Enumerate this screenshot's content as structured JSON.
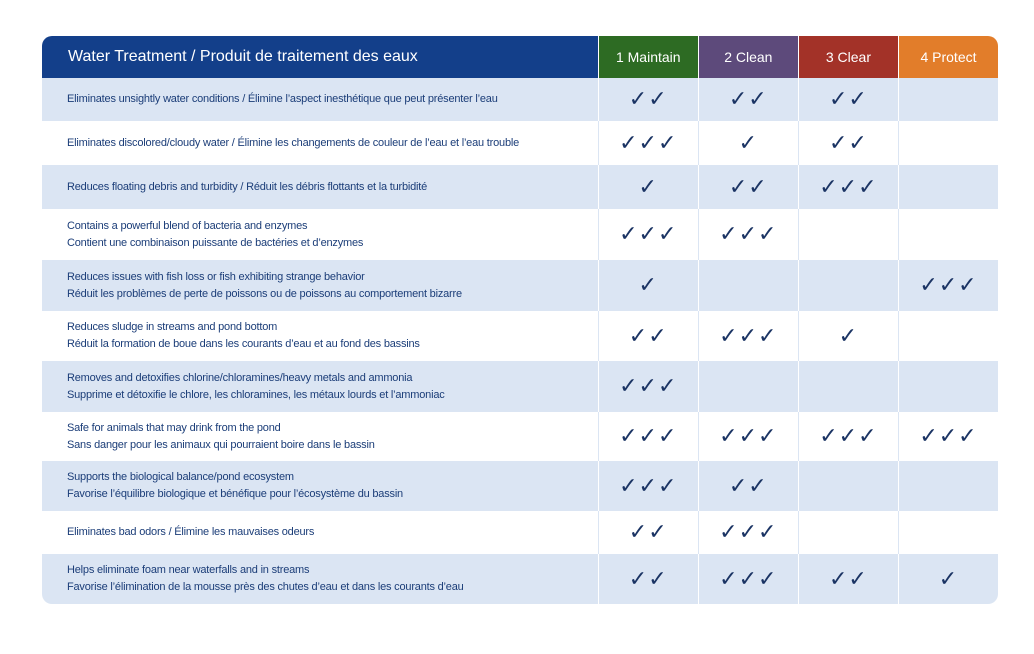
{
  "colors": {
    "title_bg": "#133f8a",
    "col1": "#2d6b23",
    "col2": "#5d4a7b",
    "col3": "#a33228",
    "col4": "#e27d2a",
    "row_shade": "#dbe5f3",
    "text": "#1b3d78"
  },
  "icon": "checkmark-icon",
  "header": {
    "title": "Water Treatment / Produit de traitement des eaux",
    "columns": [
      "1 Maintain",
      "2 Clean",
      "3 Clear",
      "4 Protect"
    ]
  },
  "rows": [
    {
      "lines": [
        "Eliminates unsightly water conditions / Élimine l’aspect inesthétique que peut présenter l’eau"
      ],
      "checks": [
        "✓✓",
        "✓✓",
        "✓✓",
        ""
      ]
    },
    {
      "lines": [
        "Eliminates discolored/cloudy water / Élimine les changements de couleur de l’eau et l’eau trouble"
      ],
      "checks": [
        "✓✓✓",
        "✓",
        "✓✓",
        ""
      ]
    },
    {
      "lines": [
        "Reduces floating debris and turbidity / Réduit les débris flottants et la turbidité"
      ],
      "checks": [
        "✓",
        "✓✓",
        "✓✓✓",
        ""
      ]
    },
    {
      "lines": [
        "Contains a powerful blend of bacteria and enzymes",
        "Contient une combinaison puissante de bactéries et d’enzymes"
      ],
      "checks": [
        "✓✓✓",
        "✓✓✓",
        "",
        ""
      ]
    },
    {
      "lines": [
        "Reduces issues with fish loss or fish exhibiting strange behavior",
        "Réduit les problèmes de perte de poissons ou de poissons au comportement bizarre"
      ],
      "checks": [
        "✓",
        "",
        "",
        "✓✓✓"
      ]
    },
    {
      "lines": [
        "Reduces sludge in streams and pond bottom",
        "Réduit la formation de boue dans les courants d’eau et au fond des bassins"
      ],
      "checks": [
        "✓✓",
        "✓✓✓",
        "✓",
        ""
      ]
    },
    {
      "lines": [
        "Removes and detoxifies chlorine/chloramines/heavy metals and ammonia",
        "Supprime et détoxifie le chlore, les chloramines, les métaux lourds et l’ammoniac"
      ],
      "checks": [
        "✓✓✓",
        "",
        "",
        ""
      ]
    },
    {
      "lines": [
        "Safe for animals that may drink from the pond",
        "Sans danger pour les animaux qui pourraient boire dans le bassin"
      ],
      "checks": [
        "✓✓✓",
        "✓✓✓",
        "✓✓✓",
        "✓✓✓"
      ]
    },
    {
      "lines": [
        "Supports the biological balance/pond ecosystem",
        "Favorise l’équilibre biologique et bénéfique pour l’écosystème du bassin"
      ],
      "checks": [
        "✓✓✓",
        "✓✓",
        "",
        ""
      ]
    },
    {
      "lines": [
        "Eliminates bad odors / Élimine les mauvaises odeurs"
      ],
      "checks": [
        "✓✓",
        "✓✓✓",
        "",
        ""
      ]
    },
    {
      "lines": [
        "Helps eliminate foam near waterfalls and in streams",
        "Favorise l’élimination de la mousse près des chutes d’eau et dans les courants d’eau"
      ],
      "checks": [
        "✓✓",
        "✓✓✓",
        "✓✓",
        "✓"
      ]
    }
  ]
}
